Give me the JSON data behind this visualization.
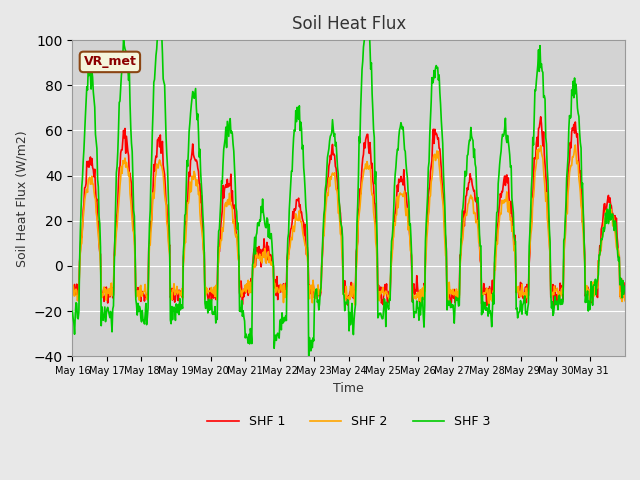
{
  "title": "Soil Heat Flux",
  "xlabel": "Time",
  "ylabel": "Soil Heat Flux (W/m2)",
  "ylim": [
    -40,
    100
  ],
  "shf1_color": "#ff0000",
  "shf2_color": "#ffa500",
  "shf3_color": "#00cc00",
  "shf1_label": "SHF 1",
  "shf2_label": "SHF 2",
  "shf3_label": "SHF 3",
  "annotation_text": "VR_met",
  "bg_color": "#e8e8e8",
  "plot_bg_color": "#d3d3d3",
  "linewidth": 1.2,
  "x_tick_labels": [
    "May 16",
    "May 17",
    "May 18",
    "May 19",
    "May 20",
    "May 21",
    "May 22",
    "May 23",
    "May 24",
    "May 25",
    "May 26",
    "May 27",
    "May 28",
    "May 29",
    "May 30",
    "May 31"
  ],
  "yticks": [
    -40,
    -20,
    0,
    20,
    40,
    60,
    80,
    100
  ],
  "n_days": 16,
  "points_per_day": 48
}
